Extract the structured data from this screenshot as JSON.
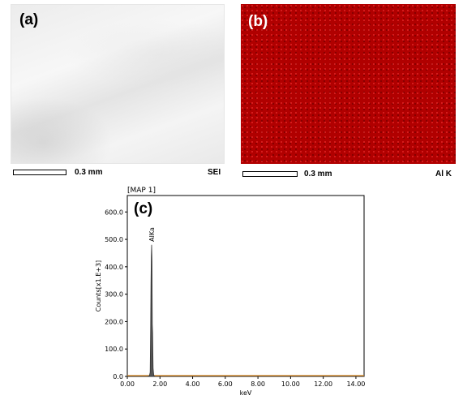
{
  "panels": {
    "a": {
      "letter": "(a)",
      "scale": "0.3 mm",
      "mode": "SEI"
    },
    "b": {
      "letter": "(b)",
      "scale": "0.3 mm",
      "mode": "Al K"
    },
    "c": {
      "letter": "(c)",
      "map_label": "[MAP 1]"
    }
  },
  "colors": {
    "map_red": "#b00000",
    "spectrum_fill": "#555555",
    "baseline_orange": "#e08a1e"
  },
  "chart_data": {
    "type": "line",
    "title": "",
    "xlabel": "keV",
    "ylabel": "Counts[x1.E+3]",
    "xlim": [
      0,
      14.5
    ],
    "ylim": [
      0,
      660
    ],
    "x_ticks": [
      "0.00",
      "2.00",
      "4.00",
      "6.00",
      "8.00",
      "10.00",
      "12.00",
      "14.00"
    ],
    "y_ticks": [
      "0.0",
      "100.0",
      "200.0",
      "300.0",
      "400.0",
      "500.0",
      "600.0"
    ],
    "peaks": [
      {
        "label": "AlKa",
        "x": 1.49,
        "y": 480
      }
    ],
    "series": [
      {
        "x": [
          0,
          1.2,
          1.35,
          1.4,
          1.43,
          1.45,
          1.47,
          1.49,
          1.51,
          1.53,
          1.55,
          1.58,
          1.62,
          1.7,
          2.0,
          14.5
        ],
        "y": [
          0,
          0,
          2,
          15,
          180,
          340,
          440,
          480,
          420,
          190,
          160,
          30,
          4,
          0,
          0,
          0
        ]
      }
    ]
  }
}
